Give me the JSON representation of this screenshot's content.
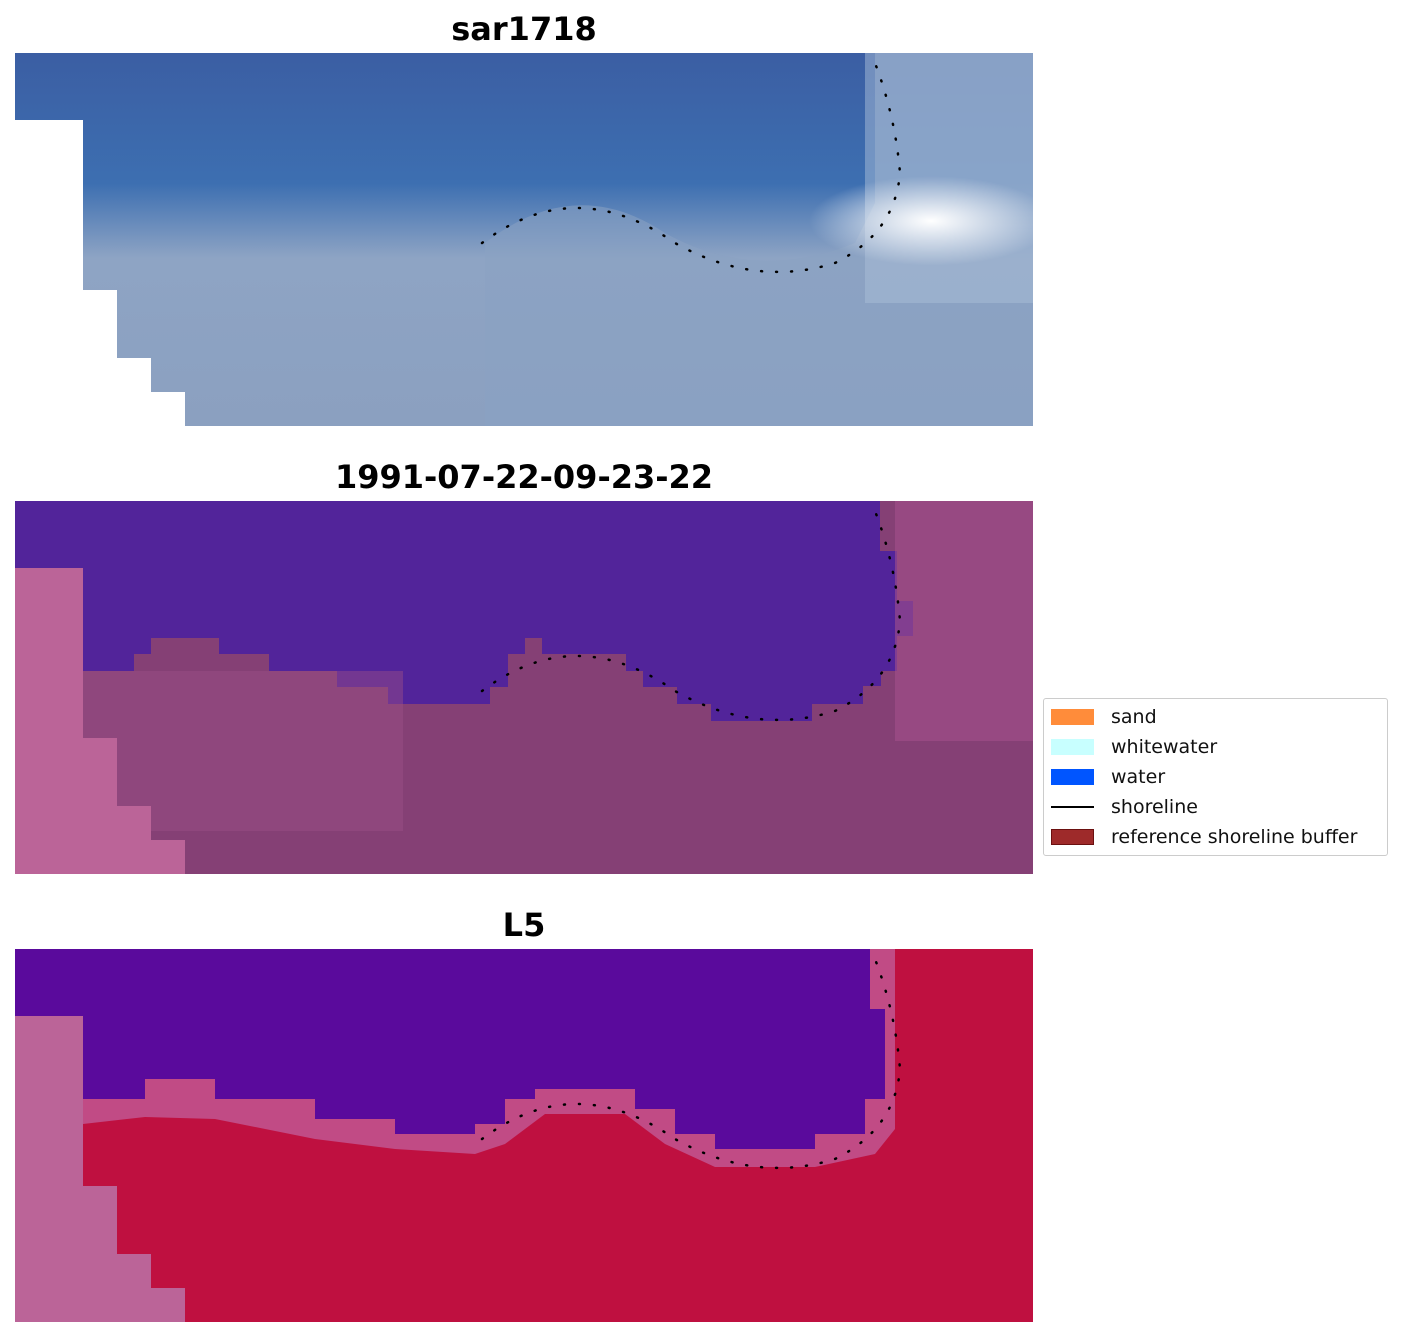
{
  "panels": [
    {
      "title": "sar1718"
    },
    {
      "title": "1991-07-22-09-23-22"
    },
    {
      "title": "L5"
    }
  ],
  "legend": {
    "placement": "right-middle",
    "items": [
      {
        "label": "sand",
        "color": "#ff8c3a",
        "kind": "patch"
      },
      {
        "label": "whitewater",
        "color": "#c8ffff",
        "kind": "patch"
      },
      {
        "label": "water",
        "color": "#0055ff",
        "kind": "patch"
      },
      {
        "label": "shoreline",
        "color": "#000000",
        "kind": "line"
      },
      {
        "label": "reference shoreline buffer",
        "color": "#9e2a2a",
        "kind": "patch"
      }
    ]
  },
  "colors": {
    "sar_water": "#3a68a8",
    "classified_water": "#52249a",
    "classified_land": "#854075",
    "index_water": "#5a0a9c",
    "index_land": "#bf1040",
    "mask_pink": "#bb6498",
    "shoreline_dots": "#000000"
  }
}
